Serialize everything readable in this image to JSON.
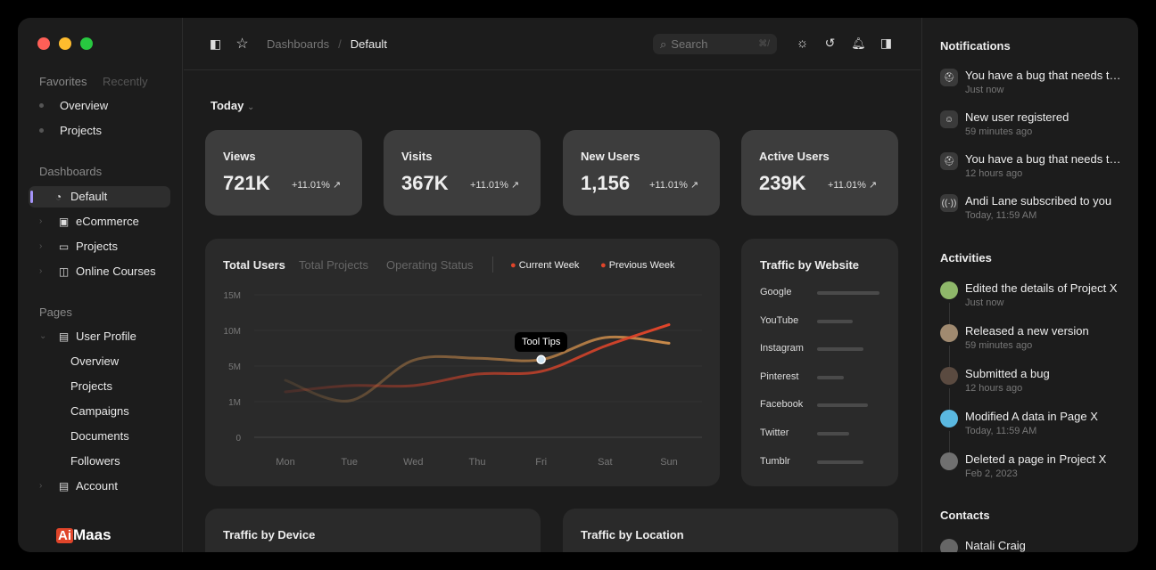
{
  "window_controls": {
    "close": "#ff5f57",
    "minimize": "#febc2e",
    "maximize": "#28c840"
  },
  "sidebar": {
    "tabs": [
      "Favorites",
      "Recently"
    ],
    "favorites": [
      "Overview",
      "Projects"
    ],
    "dashboards_title": "Dashboards",
    "dashboards": [
      {
        "label": "Default",
        "icon": "pie-chart-icon",
        "active": true
      },
      {
        "label": "eCommerce",
        "icon": "shop-icon"
      },
      {
        "label": "Projects",
        "icon": "folder-icon"
      },
      {
        "label": "Online Courses",
        "icon": "book-icon"
      }
    ],
    "pages_title": "Pages",
    "user_profile": "User Profile",
    "user_profile_items": [
      "Overview",
      "Projects",
      "Campaigns",
      "Documents",
      "Followers"
    ],
    "account": "Account",
    "logo": "AiMaas",
    "accent": "#a594f9"
  },
  "header": {
    "breadcrumb": [
      "Dashboards",
      "Default"
    ],
    "search_placeholder": "Search",
    "search_shortcut": "⌘/"
  },
  "main": {
    "period": "Today",
    "stats": [
      {
        "title": "Views",
        "value": "721K",
        "change": "+11.01%"
      },
      {
        "title": "Visits",
        "value": "367K",
        "change": "+11.01%"
      },
      {
        "title": "New Users",
        "value": "1,156",
        "change": "+11.01%"
      },
      {
        "title": "Active Users",
        "value": "239K",
        "change": "+11.01%"
      }
    ],
    "chart_tabs": [
      "Total Users",
      "Total Projects",
      "Operating Status"
    ],
    "tooltip": "Tool Tips",
    "traffic_website": {
      "title": "Traffic by Website",
      "sites": [
        {
          "name": "Google",
          "share": 1.0
        },
        {
          "name": "YouTube",
          "share": 0.57
        },
        {
          "name": "Instagram",
          "share": 0.74
        },
        {
          "name": "Pinterest",
          "share": 0.43
        },
        {
          "name": "Facebook",
          "share": 0.81
        },
        {
          "name": "Twitter",
          "share": 0.51
        },
        {
          "name": "Tumblr",
          "label": "Tumblr",
          "share": 0.74
        }
      ]
    },
    "traffic_device_title": "Traffic by Device",
    "traffic_location_title": "Traffic by Location"
  },
  "chart_data": {
    "type": "line",
    "categories": [
      "Mon",
      "Tue",
      "Wed",
      "Thu",
      "Fri",
      "Sat",
      "Sun"
    ],
    "y_ticks": [
      "0",
      "1M",
      "5M",
      "10M",
      "15M"
    ],
    "y_tick_values": [
      0,
      1,
      5,
      10,
      15
    ],
    "grid": true,
    "legend_position": "top",
    "series": [
      {
        "name": "Current Week",
        "color": "#c98a4a",
        "values": [
          3.4,
          1.1,
          5.8,
          6.1,
          5.9,
          9.0,
          8.2
        ]
      },
      {
        "name": "Previous Week",
        "color": "#e0452a",
        "values": [
          2.1,
          2.8,
          2.8,
          4.1,
          4.4,
          7.8,
          10.8
        ]
      }
    ],
    "highlight": {
      "category": "Fri",
      "series": "Current Week"
    }
  },
  "right": {
    "notifications_title": "Notifications",
    "notifications": [
      {
        "text": "You have a bug that needs to be fixed.",
        "time": "Just now",
        "icon": "bug-icon"
      },
      {
        "text": "New user registered",
        "time": "59 minutes ago",
        "icon": "user-icon"
      },
      {
        "text": "You have a bug that needs to be fixed.",
        "time": "12 hours ago",
        "icon": "bug-icon"
      },
      {
        "text": "Andi Lane subscribed to you",
        "time": "Today, 11:59 AM",
        "icon": "broadcast-icon"
      }
    ],
    "activities_title": "Activities",
    "activities": [
      {
        "text": "Edited the details of Project X",
        "time": "Just now",
        "color": "#8fb86a"
      },
      {
        "text": "Released a new version",
        "time": "59 minutes ago",
        "color": "#a08a70"
      },
      {
        "text": "Submitted a bug",
        "time": "12 hours ago",
        "color": "#5a4a40"
      },
      {
        "text": "Modified A data in Page X",
        "time": "Today, 11:59 AM",
        "color": "#5ab8e0"
      },
      {
        "text": "Deleted a page in Project X",
        "time": "Feb 2, 2023",
        "color": "#707070"
      }
    ],
    "contacts_title": "Contacts",
    "contacts": [
      "Natali Craig"
    ]
  }
}
